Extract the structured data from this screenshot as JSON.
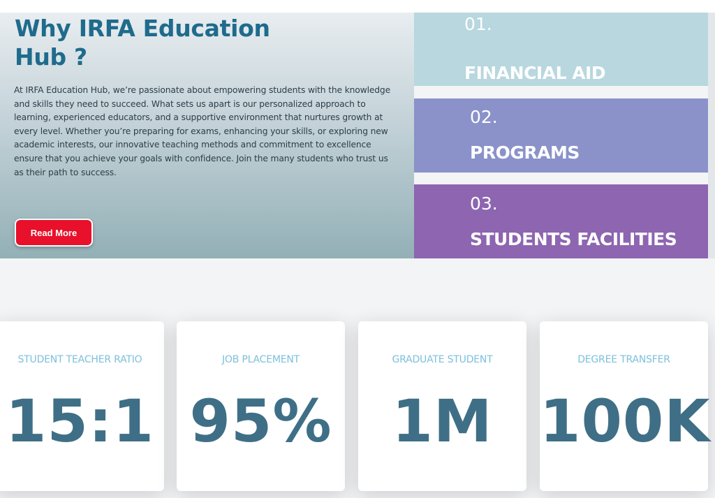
{
  "hero": {
    "title": "Why IRFA Education Hub ?",
    "description": "At IRFA Education Hub, we’re passionate about empowering students with the knowledge and skills they need to succeed. What sets us apart is our personalized approach to learning, experienced educators, and a supportive environment that nurtures growth at every level. Whether you’re preparing for exams, enhancing your skills, or exploring new academic interests, our innovative teaching methods and commitment to excellence ensure that you achieve your goals with confidence. Join the many students who trust us as their path to success.",
    "read_more_label": "Read More"
  },
  "features": [
    {
      "number": "01.",
      "label": "FINANCIAL AID",
      "color": "#b8d7df"
    },
    {
      "number": "02.",
      "label": "PROGRAMS",
      "color": "#8a92c9"
    },
    {
      "number": "03.",
      "label": "STUDENTS FACILITIES",
      "color": "#8d65b0"
    }
  ],
  "stats": [
    {
      "label": "STUDENT TEACHER RATIO",
      "value": "15:1"
    },
    {
      "label": "JOB PLACEMENT",
      "value": "95%"
    },
    {
      "label": "GRADUATE STUDENT",
      "value": "1M"
    },
    {
      "label": "DEGREE TRANSFER",
      "value": "100K"
    }
  ],
  "colors": {
    "title": "#1f6b8c",
    "button": "#e8102a",
    "stat_label": "#7cc0dc",
    "stat_value": "#3f6f86"
  }
}
